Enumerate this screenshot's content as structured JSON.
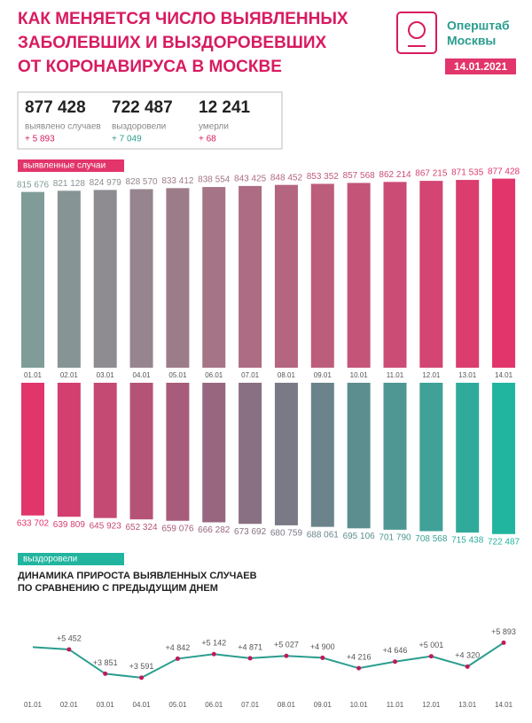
{
  "header": {
    "title": [
      "КАК МЕНЯЕТСЯ ЧИСЛО ВЫЯВЛЕННЫХ",
      "ЗАБОЛЕВШИХ И ВЫЗДОРОВЕВШИХ",
      "ОТ КОРОНАВИРУСА В МОСКВЕ"
    ],
    "logo": [
      "Оперштаб",
      "Москвы"
    ],
    "date": "14.01.2021"
  },
  "stats": [
    {
      "value": "877 428",
      "label": "выявлено случаев",
      "change": "+ 5 893"
    },
    {
      "value": "722 487",
      "label": "выздоровели",
      "change": "+ 7 049"
    },
    {
      "value": "12 241",
      "label": "умерли",
      "change": "+ 68"
    }
  ],
  "chart_data": [
    {
      "type": "bar",
      "label": "выявленные случаи",
      "categories": [
        "01.01",
        "02.01",
        "03.01",
        "04.01",
        "05.01",
        "06.01",
        "07.01",
        "08.01",
        "09.01",
        "10.01",
        "11.01",
        "12.01",
        "13.01",
        "14.01"
      ],
      "values": [
        815676,
        821128,
        824979,
        828570,
        833412,
        838554,
        843425,
        848452,
        853352,
        857568,
        862214,
        867215,
        871535,
        877428
      ],
      "value_labels": [
        "815 676",
        "821 128",
        "824 979",
        "828 570",
        "833 412",
        "838 554",
        "843 425",
        "848 452",
        "853 352",
        "857 568",
        "862 214",
        "867 215",
        "871 535",
        "877 428"
      ],
      "gradient": [
        "#7f9c98",
        "#e2356b"
      ],
      "ylim": [
        0,
        880000
      ],
      "direction": "up"
    },
    {
      "type": "bar",
      "label": "выздоровели",
      "values": [
        633702,
        639809,
        645923,
        652324,
        659076,
        666282,
        673692,
        680759,
        688061,
        695106,
        701790,
        708568,
        715438,
        722487
      ],
      "value_labels": [
        "633 702",
        "639 809",
        "645 923",
        "652 324",
        "659 076",
        "666 282",
        "673 692",
        "680 759",
        "688 061",
        "695 106",
        "701 790",
        "708 568",
        "715 438",
        "722 487"
      ],
      "gradient": [
        "#e2356b",
        "#21b59f"
      ],
      "ylim": [
        0,
        880000
      ],
      "direction": "down"
    },
    {
      "type": "line",
      "title": [
        "ДИНАМИКА ПРИРОСТА ВЫЯВЛЕННЫХ СЛУЧАЕВ",
        "ПО СРАВНЕНИЮ С ПРЕДЫДУЩИМ ДНЕМ"
      ],
      "categories": [
        "01.01",
        "02.01",
        "03.01",
        "04.01",
        "05.01",
        "06.01",
        "07.01",
        "08.01",
        "09.01",
        "10.01",
        "11.01",
        "12.01",
        "13.01",
        "14.01"
      ],
      "values": [
        5600,
        5452,
        3851,
        3591,
        4842,
        5142,
        4871,
        5027,
        4900,
        4216,
        4646,
        5001,
        4320,
        5893
      ],
      "value_labels": [
        null,
        "+5 452",
        "+3 851",
        "+3 591",
        "+4 842",
        "+5 142",
        "+4 871",
        "+5 027",
        "+4 900",
        "+4 216",
        "+4 646",
        "+5 001",
        "+4 320",
        "+5 893"
      ],
      "color": "#2a9d8f",
      "marker_color": "#c2185b",
      "ylim": [
        3000,
        6500
      ]
    }
  ]
}
